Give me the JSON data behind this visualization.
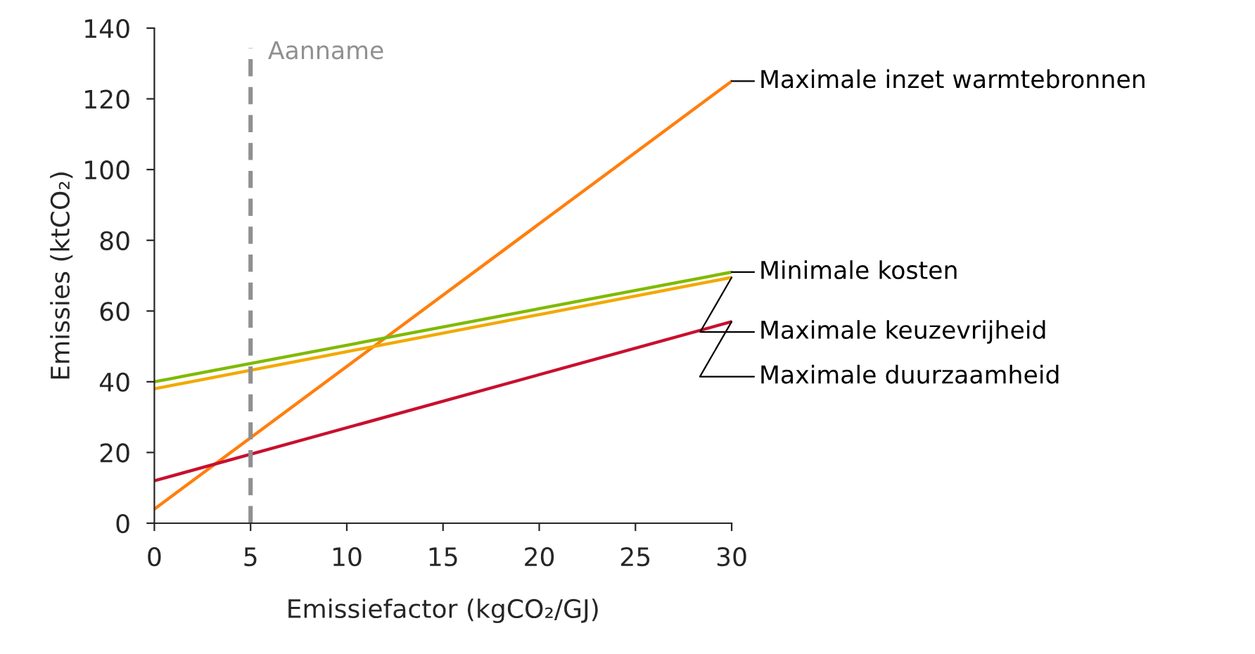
{
  "chart_data": {
    "type": "line",
    "xlabel": "Emissiefactor (kgCO₂/GJ)",
    "ylabel": "Emissies (ktCO₂)",
    "x": [
      0,
      30
    ],
    "series": [
      {
        "name": "Maximale inzet warmtebronnen",
        "color": "#ff7f0e",
        "values": [
          4,
          125
        ]
      },
      {
        "name": "Minimale kosten",
        "color": "#7fba00",
        "values": [
          40,
          71
        ]
      },
      {
        "name": "Maximale keuzevrijheid",
        "color": "#f2a900",
        "values": [
          38,
          69.5
        ]
      },
      {
        "name": "Maximale duurzaamheid",
        "color": "#c8102e",
        "values": [
          12,
          57
        ]
      }
    ],
    "xlim": [
      0,
      30
    ],
    "xticks": [
      0,
      5,
      10,
      15,
      20,
      25,
      30
    ],
    "ylim": [
      0,
      140
    ],
    "yticks": [
      0,
      20,
      40,
      60,
      80,
      100,
      120,
      140
    ],
    "ref_lines": [
      {
        "axis": "x",
        "value": 5,
        "label": "Aanname",
        "color": "#909090",
        "line_style": "dashed"
      }
    ],
    "grid": false,
    "legend": false,
    "marker": "none",
    "line_style": "solid"
  }
}
